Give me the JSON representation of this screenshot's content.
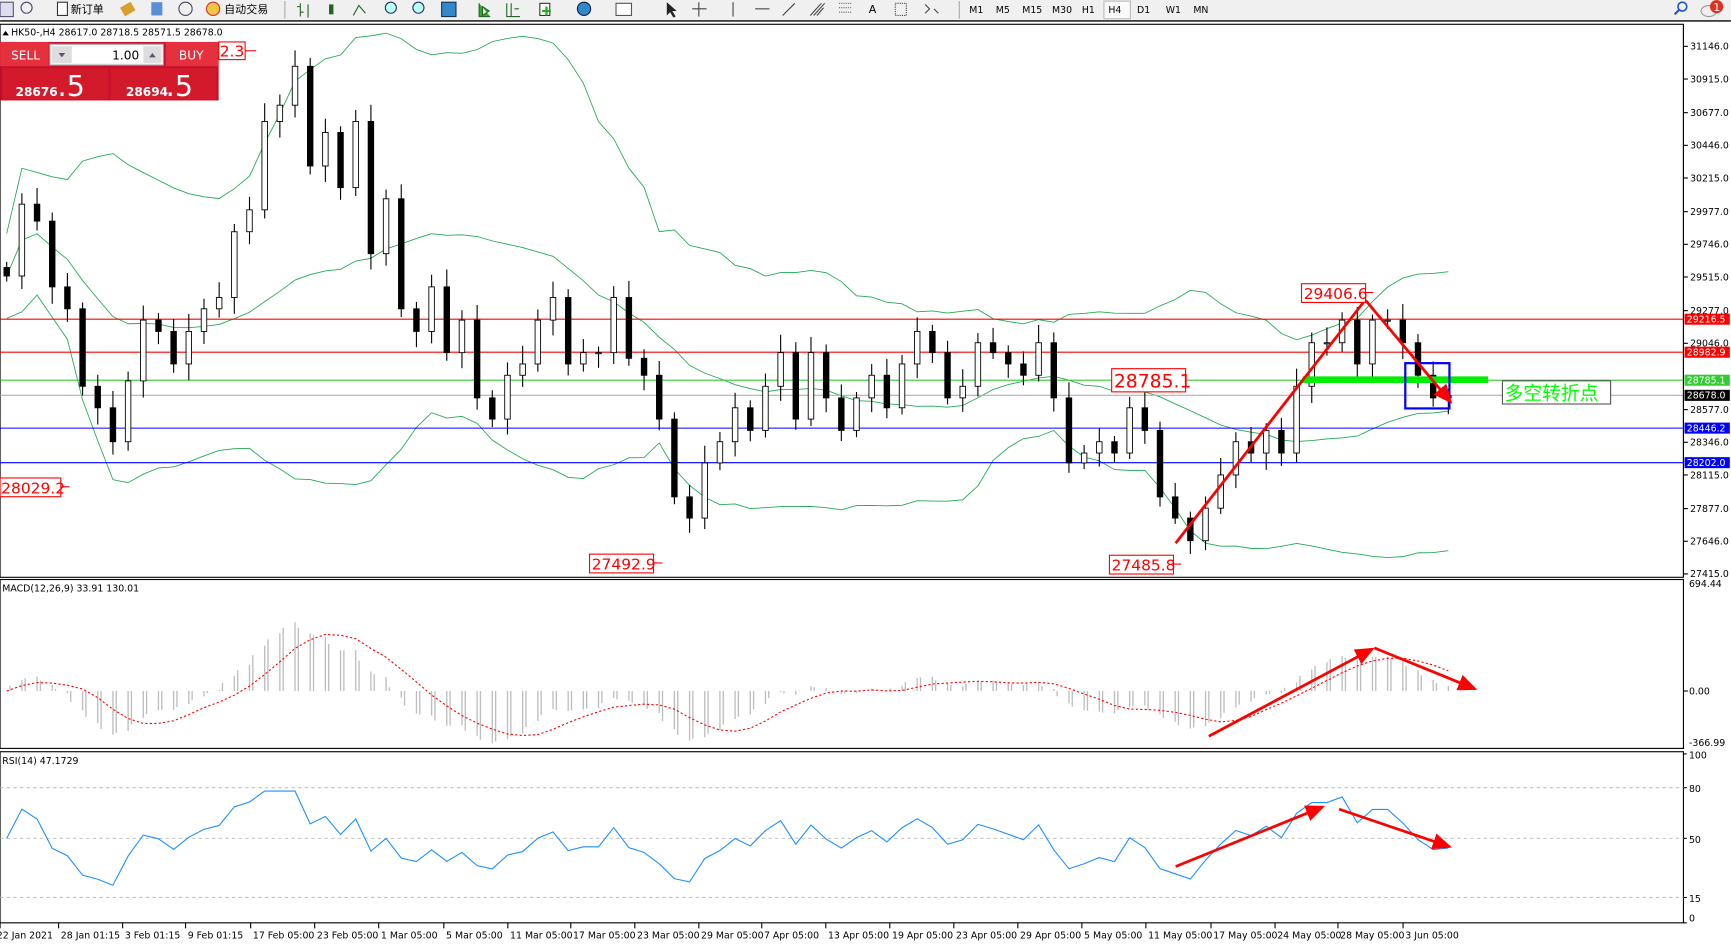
{
  "toolbar": {
    "new_order_label": "新订单",
    "auto_trade_label": "自动交易",
    "timeframes": [
      "M1",
      "M5",
      "M15",
      "M30",
      "H1",
      "H4",
      "D1",
      "W1",
      "MN"
    ],
    "active_timeframe": "H4",
    "notification_count": "1",
    "icons": [
      "chart-icon",
      "zoom-window-icon",
      "new-order-icon",
      "folder-icon",
      "market-icon",
      "signal-icon",
      "auto-trade-icon",
      "bar-chart-icon",
      "candle-chart-icon",
      "line-chart-icon",
      "zoom-in-icon",
      "zoom-out-icon",
      "tile-icon",
      "autoscroll-icon",
      "chart-shift-icon",
      "indicators-icon",
      "periods-icon",
      "templates-icon",
      "cursor-icon",
      "crosshair-icon",
      "vertical-line-icon",
      "horizontal-line-icon",
      "trendline-icon",
      "fibo-channel-icon",
      "fibo-icon",
      "text-icon",
      "label-icon",
      "arrows-icon",
      "search-icon",
      "notification-icon"
    ]
  },
  "chart_header": "HK50-,H4  28617.0 28718.5 28571.5 28678.0",
  "trade_panel": {
    "sell_label": "SELL",
    "buy_label": "BUY",
    "lot": "1.00",
    "sell_price_main": "28676",
    "sell_price_big": ".5",
    "buy_price_main": "28694",
    "buy_price_big": ".5"
  },
  "annotations": {
    "top_partial": "2.3",
    "low_left": "28029.2",
    "low_mar": "27492.9",
    "low_may": "27485.8",
    "pivot": "28785.1",
    "high_may": "29406.6",
    "pivot_text": "多空转折点"
  },
  "levels": [
    {
      "value": "29216.5",
      "color": "#ff0000"
    },
    {
      "value": "28982.9",
      "color": "#ff0000"
    },
    {
      "value": "28785.1",
      "color": "#33cc33"
    },
    {
      "value": "28678.0",
      "color": "#000000"
    },
    {
      "value": "28446.2",
      "color": "#0000ff"
    },
    {
      "value": "28202.0",
      "color": "#0000ff"
    }
  ],
  "macd": {
    "label": "MACD(12,26,9) 33.91 130.01",
    "axis": [
      "694.44",
      "0.00",
      "-366.99"
    ]
  },
  "rsi": {
    "label": "RSI(14) 47.1729",
    "axis": [
      "100",
      "80",
      "50",
      "15",
      "0"
    ]
  },
  "chart_data": {
    "type": "candlestick",
    "symbol": "HK50-",
    "timeframe": "H4",
    "price_axis": [
      "31146.0",
      "30915.0",
      "30677.0",
      "30446.0",
      "30215.0",
      "29977.0",
      "29746.0",
      "29515.0",
      "29277.0",
      "29046.0",
      "28577.0",
      "28346.0",
      "28115.0",
      "27877.0",
      "27646.0",
      "27415.0"
    ],
    "time_axis": [
      "22 Jan 2021",
      "28 Jan 01:15",
      "3 Feb 01:15",
      "9 Feb 01:15",
      "17 Feb 05:00",
      "23 Feb 05:00",
      "1 Mar 05:00",
      "5 Mar 05:00",
      "11 Mar 05:00",
      "17 Mar 05:00",
      "23 Mar 05:00",
      "29 Mar 05:00",
      "7 Apr 05:00",
      "13 Apr 05:00",
      "19 Apr 05:00",
      "23 Apr 05:00",
      "29 Apr 05:00",
      "5 May 05:00",
      "11 May 05:00",
      "17 May 05:00",
      "24 May 05:00",
      "28 May 05:00",
      "3 Jun 05:00"
    ],
    "close": [
      29522,
      30030,
      29910,
      29445,
      29290,
      28742,
      28590,
      28350,
      28780,
      29210,
      29130,
      28900,
      29130,
      29290,
      29370,
      29835,
      29990,
      30615,
      30730,
      31005,
      30300,
      30537,
      30147,
      30615,
      29680,
      30068,
      29290,
      29130,
      29445,
      28980,
      29210,
      28660,
      28510,
      28820,
      28900,
      29210,
      29370,
      28900,
      28980,
      28980,
      29370,
      28940,
      28820,
      28510,
      27960,
      27810,
      28200,
      28350,
      28590,
      28430,
      28742,
      28980,
      28510,
      28980,
      28660,
      28430,
      28660,
      28820,
      28590,
      28900,
      29130,
      28980,
      28660,
      28742,
      29050,
      28980,
      28900,
      28820,
      29050,
      28660,
      28200,
      28270,
      28350,
      28270,
      28590,
      28430,
      27960,
      27810,
      27650,
      27880,
      28115,
      28350,
      28270,
      28430,
      28270,
      28742,
      29050,
      29050,
      29210,
      28900,
      29210,
      29210,
      29050,
      28820,
      28660,
      28678
    ],
    "indicators": [
      "Bollinger Bands",
      "MACD(12,26,9)",
      "RSI(14)"
    ],
    "rsi_levels": [
      80,
      50,
      15
    ]
  }
}
